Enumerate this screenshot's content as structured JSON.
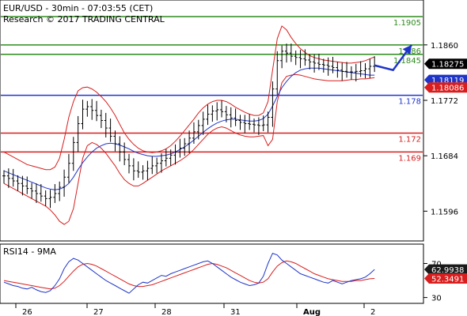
{
  "chart_data": {
    "type": "line",
    "title": "EUR/USD - 30min - 07:03:55 (CET)",
    "subtitle": "Research © 2017 TRADING CENTRAL",
    "x_ticks": [
      "26",
      "27",
      "28",
      "31",
      "Aug",
      "2"
    ],
    "price_panel": {
      "ylim": [
        1.1555,
        1.1925
      ],
      "y_ticks": [
        "1.1860",
        "1.1772",
        "1.1684",
        "1.1596"
      ],
      "levels": [
        {
          "label": "1.1905",
          "value": 1.1905,
          "color": "#2e8b1e"
        },
        {
          "label": "1.186",
          "value": 1.186,
          "color": "#2e8b1e"
        },
        {
          "label": "1.1845",
          "value": 1.1845,
          "color": "#2e8b1e"
        },
        {
          "label": "1.178",
          "value": 1.178,
          "color": "#1f35c8"
        },
        {
          "label": "1.172",
          "value": 1.172,
          "color": "#d81e1e"
        },
        {
          "label": "1.169",
          "value": 1.169,
          "color": "#d81e1e"
        }
      ],
      "price_tags": [
        {
          "label": "1.18275",
          "value": 1.18275,
          "bg": "#000000"
        },
        {
          "label": "1.18119",
          "value": 1.18119,
          "bg": "#1f35c8"
        },
        {
          "label": "1.18086",
          "value": 1.18086,
          "bg": "#d81e1e"
        }
      ],
      "close": [
        1.1652,
        1.1648,
        1.1644,
        1.164,
        1.1636,
        1.1632,
        1.1628,
        1.1624,
        1.162,
        1.1616,
        1.1618,
        1.1624,
        1.1634,
        1.165,
        1.1672,
        1.1705,
        1.1735,
        1.1758,
        1.1762,
        1.1756,
        1.1748,
        1.174,
        1.1728,
        1.1715,
        1.1703,
        1.169,
        1.1678,
        1.1668,
        1.166,
        1.1658,
        1.166,
        1.1664,
        1.1668,
        1.1672,
        1.1676,
        1.168,
        1.1685,
        1.169,
        1.1696,
        1.1703,
        1.1712,
        1.1722,
        1.1732,
        1.1742,
        1.175,
        1.1755,
        1.1757,
        1.1754,
        1.1749,
        1.1744,
        1.174,
        1.1737,
        1.1735,
        1.1734,
        1.1733,
        1.1732,
        1.1733,
        1.1745,
        1.179,
        1.1835,
        1.185,
        1.1847,
        1.1842,
        1.184,
        1.1838,
        1.1836,
        1.1833,
        1.1831,
        1.1829,
        1.1828,
        1.1826,
        1.1824,
        1.182,
        1.1818,
        1.1817,
        1.1817,
        1.1818,
        1.1819,
        1.1822,
        1.1826,
        1.1827
      ],
      "forecast": [
        [
          80,
          1.18275
        ],
        [
          84,
          1.182
        ],
        [
          88,
          1.186
        ]
      ],
      "ma": [
        1.166,
        1.1657,
        1.1654,
        1.1651,
        1.1648,
        1.1645,
        1.1642,
        1.1639,
        1.1636,
        1.1633,
        1.1631,
        1.163,
        1.1631,
        1.1634,
        1.164,
        1.165,
        1.1662,
        1.1673,
        1.1682,
        1.169,
        1.1696,
        1.17,
        1.1703,
        1.1704,
        1.1703,
        1.1701,
        1.1698,
        1.1695,
        1.1691,
        1.1688,
        1.1686,
        1.1684,
        1.1683,
        1.1683,
        1.1684,
        1.1685,
        1.1687,
        1.169,
        1.1694,
        1.1698,
        1.1703,
        1.1709,
        1.1715,
        1.1721,
        1.1727,
        1.1732,
        1.1736,
        1.1739,
        1.1741,
        1.1742,
        1.1742,
        1.1741,
        1.174,
        1.1739,
        1.1739,
        1.174,
        1.1743,
        1.175,
        1.1763,
        1.1778,
        1.1792,
        1.1802,
        1.181,
        1.1816,
        1.182,
        1.1822,
        1.1823,
        1.1823,
        1.1823,
        1.1822,
        1.1821,
        1.182,
        1.1819,
        1.1818,
        1.1817,
        1.1816,
        1.1815,
        1.1814,
        1.1813,
        1.1812,
        1.1812
      ],
      "band_upper": [
        1.169,
        1.1686,
        1.1682,
        1.1678,
        1.1674,
        1.167,
        1.1668,
        1.1666,
        1.1664,
        1.1662,
        1.1662,
        1.1666,
        1.168,
        1.171,
        1.1745,
        1.177,
        1.1787,
        1.1792,
        1.1793,
        1.179,
        1.1785,
        1.1778,
        1.177,
        1.176,
        1.1748,
        1.1734,
        1.172,
        1.171,
        1.1702,
        1.1696,
        1.1692,
        1.169,
        1.1689,
        1.169,
        1.1692,
        1.1695,
        1.17,
        1.1707,
        1.1715,
        1.1724,
        1.1733,
        1.1742,
        1.1752,
        1.176,
        1.1766,
        1.177,
        1.1772,
        1.1772,
        1.177,
        1.1766,
        1.1761,
        1.1757,
        1.1753,
        1.175,
        1.1748,
        1.1748,
        1.1752,
        1.177,
        1.182,
        1.187,
        1.189,
        1.1884,
        1.1872,
        1.1862,
        1.1854,
        1.1848,
        1.1843,
        1.184,
        1.1838,
        1.1836,
        1.1835,
        1.1834,
        1.1833,
        1.1832,
        1.1831,
        1.1831,
        1.1832,
        1.1833,
        1.1835,
        1.1838,
        1.1841
      ],
      "band_lower": [
        1.164,
        1.1636,
        1.1632,
        1.1628,
        1.1624,
        1.162,
        1.1616,
        1.1612,
        1.1608,
        1.1604,
        1.1598,
        1.159,
        1.158,
        1.1575,
        1.158,
        1.16,
        1.164,
        1.168,
        1.17,
        1.1705,
        1.1702,
        1.1696,
        1.1688,
        1.1678,
        1.1668,
        1.1656,
        1.1646,
        1.164,
        1.1636,
        1.1636,
        1.164,
        1.1645,
        1.165,
        1.1655,
        1.166,
        1.1664,
        1.1668,
        1.1672,
        1.1676,
        1.1681,
        1.1687,
        1.1694,
        1.1702,
        1.171,
        1.1718,
        1.1724,
        1.1728,
        1.173,
        1.1728,
        1.1724,
        1.172,
        1.1717,
        1.1715,
        1.1714,
        1.1714,
        1.1715,
        1.1716,
        1.17,
        1.171,
        1.177,
        1.18,
        1.181,
        1.1812,
        1.1813,
        1.1812,
        1.181,
        1.1808,
        1.1806,
        1.1805,
        1.1804,
        1.1803,
        1.1803,
        1.1803,
        1.1803,
        1.1804,
        1.1805,
        1.1805,
        1.1806,
        1.1806,
        1.1807,
        1.1808
      ]
    },
    "rsi_panel": {
      "title": "RSI14 - 9MA",
      "ylim": [
        25,
        90
      ],
      "y_ticks": [
        "70",
        "30"
      ],
      "value_tags": [
        {
          "label": "62.9938",
          "value": 62.9938,
          "bg": "#1a1a1a"
        },
        {
          "label": "52.3491",
          "value": 52.3491,
          "bg": "#d81e1e"
        }
      ],
      "rsi": [
        48,
        46,
        44,
        43,
        41,
        40,
        42,
        39,
        37,
        36,
        38,
        44,
        52,
        64,
        72,
        76,
        74,
        70,
        66,
        62,
        58,
        54,
        50,
        47,
        44,
        41,
        38,
        35,
        40,
        45,
        48,
        47,
        50,
        53,
        56,
        55,
        58,
        60,
        62,
        64,
        66,
        68,
        70,
        72,
        73,
        70,
        66,
        62,
        58,
        54,
        51,
        48,
        46,
        44,
        45,
        47,
        55,
        70,
        82,
        80,
        74,
        70,
        66,
        62,
        58,
        56,
        54,
        52,
        50,
        48,
        47,
        50,
        48,
        46,
        48,
        50,
        51,
        52,
        54,
        58,
        62.99
      ],
      "rsi_ma": [
        50,
        49,
        48,
        47,
        46,
        45,
        44,
        43,
        42,
        41,
        40,
        41,
        44,
        49,
        55,
        61,
        66,
        69,
        70,
        69,
        67,
        64,
        61,
        58,
        55,
        52,
        49,
        46,
        44,
        43,
        43,
        44,
        45,
        47,
        49,
        51,
        53,
        55,
        57,
        59,
        61,
        63,
        65,
        67,
        69,
        70,
        69,
        67,
        65,
        62,
        59,
        56,
        53,
        50,
        48,
        47,
        48,
        52,
        60,
        67,
        71,
        73,
        72,
        70,
        67,
        64,
        61,
        58,
        56,
        54,
        52,
        51,
        50,
        49,
        49,
        49,
        50,
        50,
        51,
        52,
        52.35
      ]
    }
  }
}
